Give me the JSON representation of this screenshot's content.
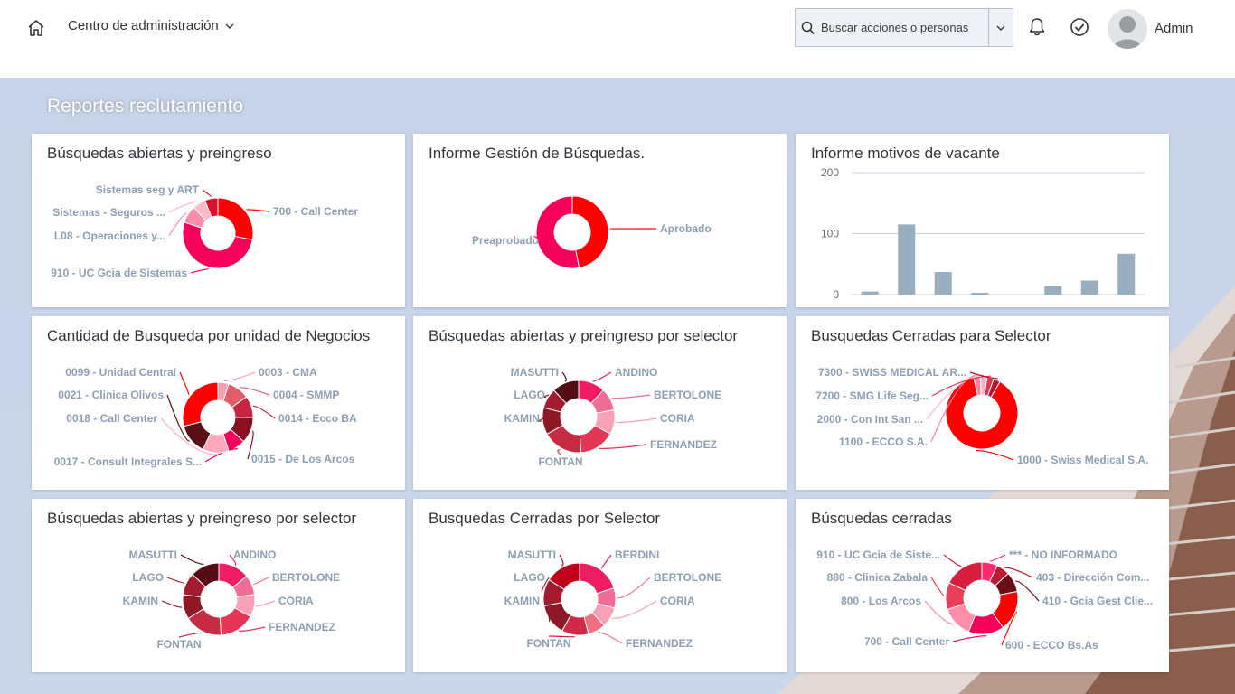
{
  "header": {
    "app_title": "Centro de administración",
    "search_placeholder": "Buscar acciones o personas",
    "user_name": "Admin"
  },
  "section_title": "Reportes reclutamiento",
  "colors": {
    "accent_red": "#ff0000",
    "accent_pink": "#f5005a",
    "label": "#8c9fb5",
    "bar": "#99aebf"
  },
  "tiles": [
    {
      "title": "Búsquedas abiertas y preingreso",
      "chart_data": {
        "type": "pie",
        "slices": [
          {
            "label": "700 - Call Center",
            "value": 28,
            "color": "#ff0000"
          },
          {
            "label": "910 - UC Gcia de Sistemas",
            "value": 52,
            "color": "#f5005a"
          },
          {
            "label": "L08 - Operaciones y...",
            "value": 8,
            "color": "#ff8aaa"
          },
          {
            "label": "Sistemas - Seguros ...",
            "value": 6,
            "color": "#ffb8c9"
          },
          {
            "label": "Sistemas seg y ART",
            "value": 6,
            "color": "#d8132f"
          }
        ]
      }
    },
    {
      "title": "Informe Gestión de Búsquedas.",
      "chart_data": {
        "type": "pie",
        "slices": [
          {
            "label": "Aprobado",
            "value": 47,
            "color": "#ff0000"
          },
          {
            "label": "Preaprobado",
            "value": 53,
            "color": "#f5005a"
          }
        ]
      }
    },
    {
      "title": "Informe motivos de vacante",
      "chart_data": {
        "type": "bar",
        "values": [
          5,
          115,
          37,
          3,
          0,
          14,
          23,
          67
        ],
        "ylim": [
          0,
          200
        ],
        "yticks": [
          "0",
          "100",
          "200"
        ],
        "grid": true
      }
    },
    {
      "title": "Cantidad de Busqueda por unidad de Negocios",
      "chart_data": {
        "type": "pie",
        "slices": [
          {
            "label": "0003 - CMA",
            "value": 5,
            "color": "#f8a0b4"
          },
          {
            "label": "0004 - SMMP",
            "value": 10,
            "color": "#e25c6a"
          },
          {
            "label": "0014 - Ecco BA",
            "value": 10,
            "color": "#c8233f"
          },
          {
            "label": "0015 - De Los Arcos",
            "value": 12,
            "color": "#8a0f21"
          },
          {
            "label": "0017 - Consult Integrales S...",
            "value": 8,
            "color": "#f5005a"
          },
          {
            "label": "0018 - Call Center",
            "value": 12,
            "color": "#ffa9bb"
          },
          {
            "label": "0021 - Clinica Olivos",
            "value": 14,
            "color": "#5b0e16"
          },
          {
            "label": "0099 - Unidad Central",
            "value": 29,
            "color": "#ff0000"
          }
        ]
      }
    },
    {
      "title": "Búsquedas abiertas y preingreso por selector",
      "chart_data": {
        "type": "pie",
        "slices": [
          {
            "label": "ANDINO",
            "value": 12,
            "color": "#ef1c64"
          },
          {
            "label": "BERTOLONE",
            "value": 10,
            "color": "#f06d95"
          },
          {
            "label": "CORIA",
            "value": 11,
            "color": "#f8a1b6"
          },
          {
            "label": "FERNANDEZ",
            "value": 16,
            "color": "#e63656"
          },
          {
            "label": "FONTAN",
            "value": 18,
            "color": "#c62b44"
          },
          {
            "label": "KAMIN",
            "value": 12,
            "color": "#8e1825"
          },
          {
            "label": "LAGO",
            "value": 9,
            "color": "#a31b2f"
          },
          {
            "label": "MASUTTI",
            "value": 12,
            "color": "#560c14"
          }
        ]
      }
    },
    {
      "title": "Busquedas Cerradas para Selector",
      "chart_data": {
        "type": "pie",
        "slices": [
          {
            "label": "1000 - Swiss Medical S.A.",
            "value": 88,
            "color": "#ff0000"
          },
          {
            "label": "1100 - ECCO S.A.",
            "value": 3,
            "color": "#ff7f9c"
          },
          {
            "label": "2000 - Con Int San ...",
            "value": 3,
            "color": "#ffb3c4"
          },
          {
            "label": "7200 - SMG Life Seg...",
            "value": 3,
            "color": "#e0374f"
          },
          {
            "label": "7300 - SWISS MEDICAL AR...",
            "value": 3,
            "color": "#b51530"
          }
        ]
      }
    },
    {
      "title": "Búsquedas abiertas y preingreso por selector",
      "chart_data": {
        "type": "pie",
        "slices": [
          {
            "label": "ANDINO",
            "value": 14,
            "color": "#ef1c64"
          },
          {
            "label": "BERTOLONE",
            "value": 9,
            "color": "#f06d95"
          },
          {
            "label": "CORIA",
            "value": 10,
            "color": "#f8a1b6"
          },
          {
            "label": "FERNANDEZ",
            "value": 16,
            "color": "#e63656"
          },
          {
            "label": "FONTAN",
            "value": 17,
            "color": "#c62b44"
          },
          {
            "label": "KAMIN",
            "value": 11,
            "color": "#8e1825"
          },
          {
            "label": "LAGO",
            "value": 10,
            "color": "#a31b2f"
          },
          {
            "label": "MASUTTI",
            "value": 13,
            "color": "#560c14"
          }
        ]
      }
    },
    {
      "title": "Busquedas Cerradas por Selector",
      "chart_data": {
        "type": "pie",
        "slices": [
          {
            "label": "BERDINI",
            "value": 20,
            "color": "#ef1c64"
          },
          {
            "label": "BERTOLONE",
            "value": 9,
            "color": "#f06d95"
          },
          {
            "label": "CORIA",
            "value": 9,
            "color": "#f8a1b6"
          },
          {
            "label": "FERNANDEZ",
            "value": 8,
            "color": "#f07080"
          },
          {
            "label": "FONTAN",
            "value": 12,
            "color": "#d02a48"
          },
          {
            "label": "KAMIN",
            "value": 14,
            "color": "#8e1825"
          },
          {
            "label": "LAGO",
            "value": 12,
            "color": "#a31b2f"
          },
          {
            "label": "MASUTTI",
            "value": 16,
            "color": "#c0001a"
          }
        ]
      }
    },
    {
      "title": "Búsquedas cerradas",
      "chart_data": {
        "type": "pie",
        "slices": [
          {
            "label": "*** - NO INFORMADO",
            "value": 7,
            "color": "#ff2a6d"
          },
          {
            "label": "403 - Dirección Com...",
            "value": 6,
            "color": "#c01a32"
          },
          {
            "label": "410 - Gcia Gest Clie...",
            "value": 9,
            "color": "#6a0d18"
          },
          {
            "label": "600 - ECCO Bs.As",
            "value": 18,
            "color": "#ff0000"
          },
          {
            "label": "700 - Call Center",
            "value": 16,
            "color": "#f5005a"
          },
          {
            "label": "800 - Los Arcos",
            "value": 14,
            "color": "#ff8fa8"
          },
          {
            "label": "880 - Clinica Zabala",
            "value": 12,
            "color": "#e8405a"
          },
          {
            "label": "910 - UC Gcia de Siste...",
            "value": 18,
            "color": "#d81e3c"
          }
        ]
      }
    }
  ]
}
